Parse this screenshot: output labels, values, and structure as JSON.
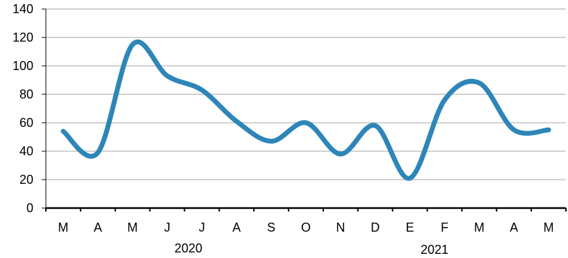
{
  "chart_data": {
    "type": "line",
    "categories": [
      "M",
      "A",
      "M",
      "J",
      "J",
      "A",
      "S",
      "O",
      "N",
      "D",
      "E",
      "F",
      "M",
      "A",
      "M"
    ],
    "year_labels": [
      "2020",
      "2021"
    ],
    "series": [
      {
        "values": [
          54,
          39,
          115,
          93,
          83,
          61,
          47,
          60,
          38,
          58,
          21,
          76,
          88,
          55,
          55
        ],
        "color": "#2e86b8"
      }
    ],
    "ylim": [
      0,
      140
    ],
    "yticks": [
      "0",
      "20",
      "40",
      "60",
      "80",
      "100",
      "120",
      "140"
    ],
    "grid": true,
    "title": "",
    "xlabel": "",
    "ylabel": ""
  }
}
